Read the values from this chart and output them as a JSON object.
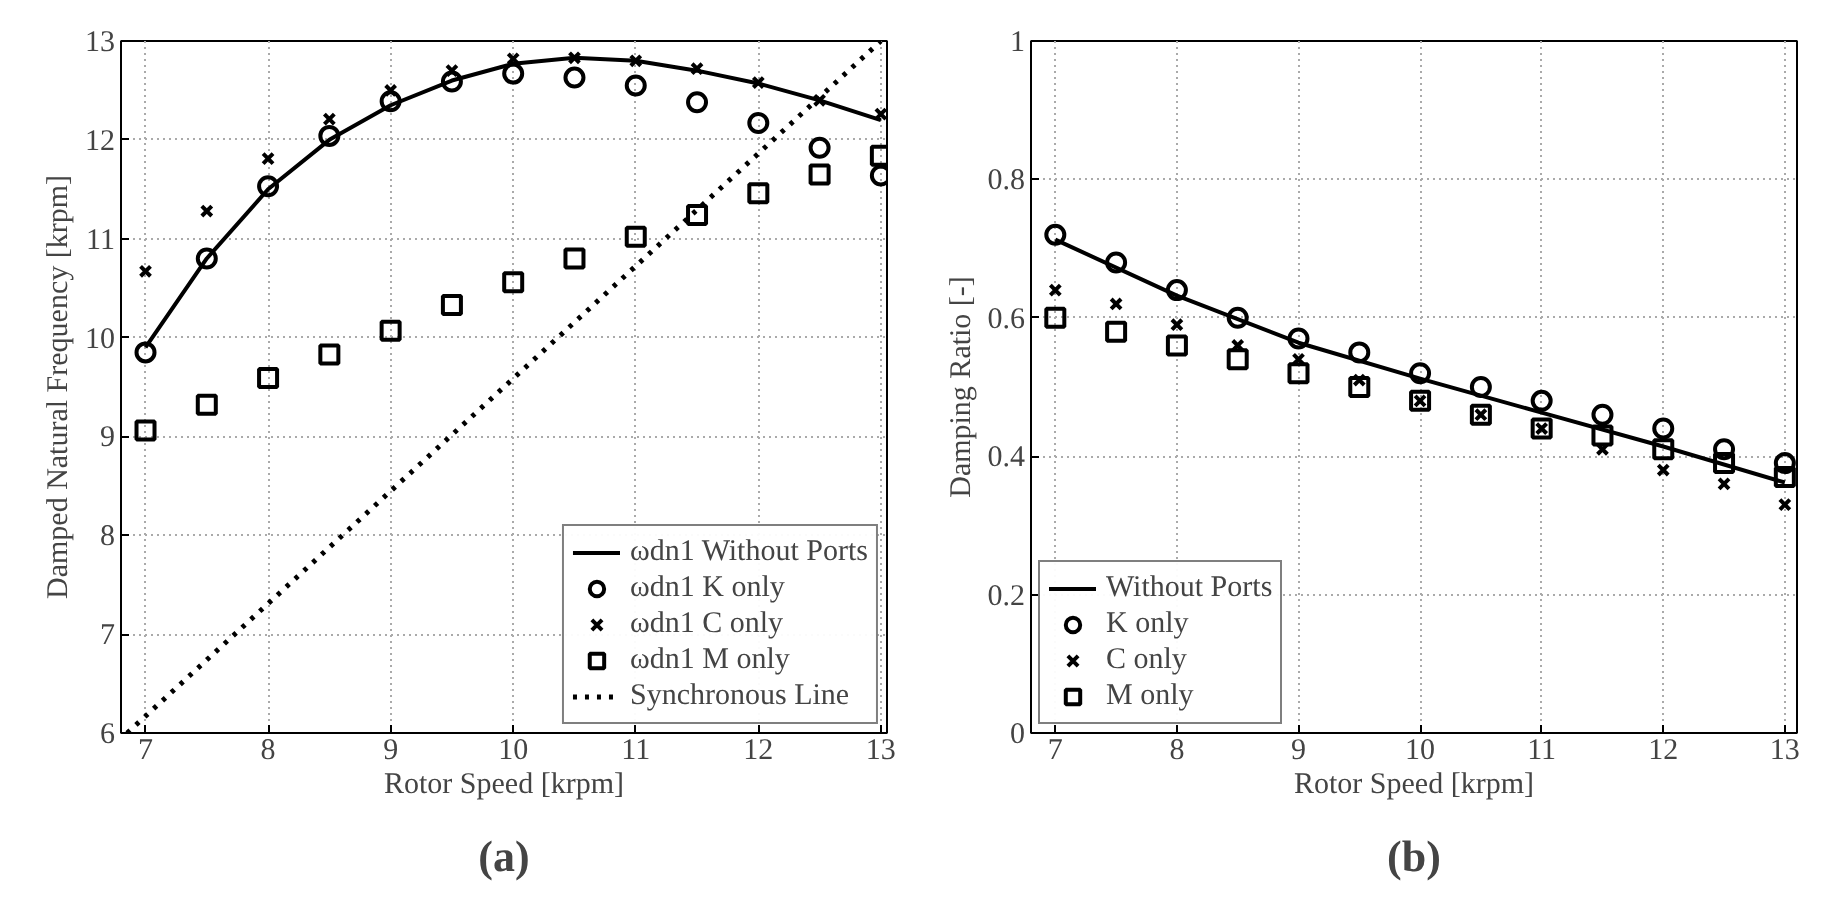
{
  "chart_data": [
    {
      "type": "scatter",
      "xlabel": "Rotor Speed [krpm]",
      "ylabel": "Damped Natural Frequency [krpm]",
      "annotations": [
        "(a)"
      ],
      "xlim": [
        6.8,
        13.05
      ],
      "ylim": [
        6,
        13
      ],
      "xticks": [
        7,
        8,
        9,
        10,
        11,
        12,
        13
      ],
      "yticks": [
        6,
        7,
        8,
        9,
        10,
        11,
        12,
        13
      ],
      "grid": true,
      "legend": "bottom right",
      "x": [
        7,
        7.5,
        8,
        8.5,
        9,
        9.5,
        10,
        10.5,
        11,
        11.5,
        12,
        12.5,
        13
      ],
      "series": [
        {
          "name": "ωdn1 Without Ports",
          "type": "line",
          "line_style": "solid",
          "marker": "none",
          "color": "#000000",
          "values": [
            9.9,
            10.8,
            11.5,
            12.0,
            12.35,
            12.6,
            12.77,
            12.83,
            12.8,
            12.7,
            12.57,
            12.4,
            12.2
          ]
        },
        {
          "name": "ωdn1 K only",
          "marker": "circle",
          "color": "#000000",
          "values": [
            9.85,
            10.8,
            11.53,
            12.04,
            12.39,
            12.59,
            12.67,
            12.63,
            12.55,
            12.38,
            12.17,
            11.92,
            11.64
          ]
        },
        {
          "name": "ωdn1 C only",
          "marker": "cross",
          "color": "#000000",
          "values": [
            10.67,
            11.28,
            11.81,
            12.21,
            12.5,
            12.7,
            12.82,
            12.83,
            12.8,
            12.72,
            12.58,
            12.4,
            12.26
          ]
        },
        {
          "name": "ωdn1 M only",
          "marker": "square",
          "color": "#000000",
          "values": [
            9.06,
            9.32,
            9.59,
            9.83,
            10.07,
            10.33,
            10.56,
            10.8,
            11.02,
            11.24,
            11.46,
            11.65,
            11.84
          ]
        },
        {
          "name": "Synchronous Line",
          "type": "line",
          "line_style": "dotted",
          "marker": "none",
          "color": "#000000",
          "x": [
            6.85,
            13
          ],
          "values": [
            6,
            13
          ]
        }
      ]
    },
    {
      "type": "scatter",
      "xlabel": "Rotor Speed [krpm]",
      "ylabel": "Damping Ratio [-]",
      "annotations": [
        "(b)"
      ],
      "xlim": [
        6.8,
        13.1
      ],
      "ylim": [
        0,
        1
      ],
      "xticks": [
        7,
        8,
        9,
        10,
        11,
        12,
        13
      ],
      "yticks": [
        0,
        0.2,
        0.4,
        0.6,
        0.8,
        1
      ],
      "grid": true,
      "legend": "bottom left",
      "x": [
        7,
        7.5,
        8,
        8.5,
        9,
        9.5,
        10,
        10.5,
        11,
        11.5,
        12,
        12.5,
        13
      ],
      "series": [
        {
          "name": "Without Ports",
          "type": "line",
          "line_style": "solid",
          "marker": "none",
          "color": "#000000",
          "x": [
            7,
            8,
            9,
            10,
            11,
            12,
            13
          ],
          "values": [
            0.713,
            0.632,
            0.564,
            0.512,
            0.463,
            0.414,
            0.362
          ]
        },
        {
          "name": "K only",
          "marker": "circle",
          "color": "#000000",
          "values": [
            0.72,
            0.68,
            0.64,
            0.6,
            0.57,
            0.55,
            0.52,
            0.5,
            0.48,
            0.46,
            0.44,
            0.41,
            0.39
          ]
        },
        {
          "name": "C only",
          "marker": "cross",
          "color": "#000000",
          "values": [
            0.64,
            0.62,
            0.59,
            0.56,
            0.54,
            0.51,
            0.48,
            0.46,
            0.44,
            0.41,
            0.38,
            0.36,
            0.33
          ]
        },
        {
          "name": "M only",
          "marker": "square",
          "color": "#000000",
          "values": [
            0.6,
            0.58,
            0.56,
            0.54,
            0.52,
            0.5,
            0.48,
            0.46,
            0.44,
            0.43,
            0.41,
            0.39,
            0.37
          ]
        }
      ]
    }
  ]
}
